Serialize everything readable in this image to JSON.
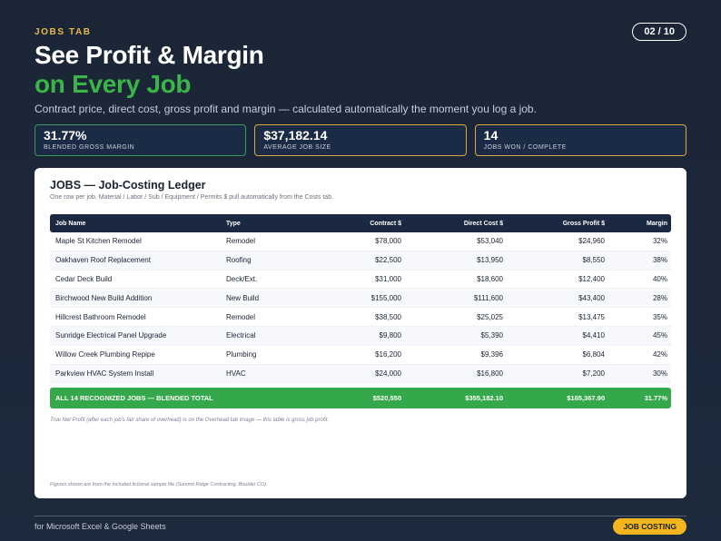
{
  "header": {
    "eyebrow": "JOBS TAB",
    "page": "02 / 10",
    "title_line1": "See Profit & Margin",
    "title_line2": "on Every Job",
    "subtitle": "Contract price, direct cost, gross profit and margin — calculated automatically the moment you log a job."
  },
  "kpis": [
    {
      "value": "31.77%",
      "label": "BLENDED GROSS MARGIN"
    },
    {
      "value": "$37,182.14",
      "label": "AVERAGE JOB SIZE"
    },
    {
      "value": "14",
      "label": "JOBS WON / COMPLETE"
    }
  ],
  "card": {
    "title": "JOBS — Job-Costing Ledger",
    "subtitle": "One row per job. Material / Labor / Sub / Equipment / Permits $ pull automatically from the Costs tab.",
    "columns": [
      "Job Name",
      "Type",
      "Contract $",
      "Direct Cost $",
      "Gross Profit $",
      "Margin"
    ],
    "rows": [
      [
        "Maple St Kitchen Remodel",
        "Remodel",
        "$78,000",
        "$53,040",
        "$24,960",
        "32%"
      ],
      [
        "Oakhaven Roof Replacement",
        "Roofing",
        "$22,500",
        "$13,950",
        "$8,550",
        "38%"
      ],
      [
        "Cedar Deck Build",
        "Deck/Ext.",
        "$31,000",
        "$18,600",
        "$12,400",
        "40%"
      ],
      [
        "Birchwood New Build Addition",
        "New Build",
        "$155,000",
        "$111,600",
        "$43,400",
        "28%"
      ],
      [
        "Hillcrest Bathroom Remodel",
        "Remodel",
        "$38,500",
        "$25,025",
        "$13,475",
        "35%"
      ],
      [
        "Sunridge Electrical Panel Upgrade",
        "Electrical",
        "$9,800",
        "$5,390",
        "$4,410",
        "45%"
      ],
      [
        "Willow Creek Plumbing Repipe",
        "Plumbing",
        "$16,200",
        "$9,396",
        "$6,804",
        "42%"
      ],
      [
        "Parkview HVAC System Install",
        "HVAC",
        "$24,000",
        "$16,800",
        "$7,200",
        "30%"
      ]
    ],
    "total": {
      "label": "ALL 14 RECOGNIZED JOBS — BLENDED TOTAL",
      "contract": "$520,550",
      "direct": "$355,182.10",
      "profit": "$165,367.90",
      "margin": "31.77%"
    },
    "note": "True Net Profit (after each job's fair share of overhead) is on the Overhead tab image — this table is gross job profit.",
    "source": "Figures shown are from the included fictional sample file (Summit Ridge Contracting, Boulder CO)."
  },
  "footer": {
    "text": "for Microsoft Excel & Google Sheets",
    "pill": "JOB COSTING"
  },
  "colors": {
    "accent_green": "#3bb54a",
    "accent_gold": "#f2b51d",
    "navy": "#1b2842"
  }
}
